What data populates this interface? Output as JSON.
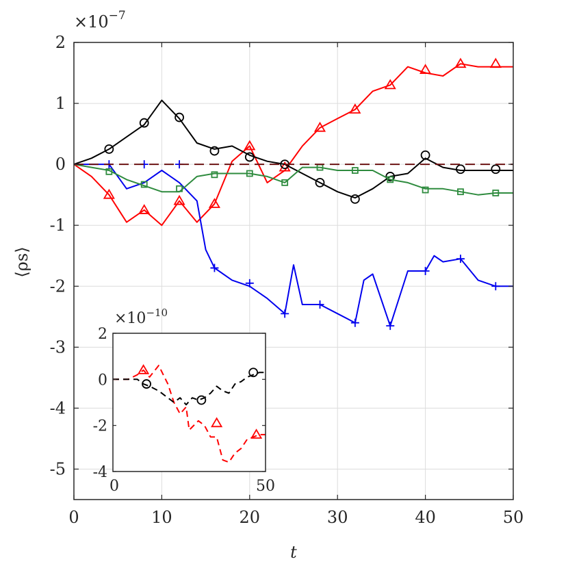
{
  "chart_data": [
    {
      "type": "line",
      "xlabel": "t",
      "ylabel": "⟨ρs⟩",
      "scale_label": "×10",
      "scale_exponent": "−7",
      "xlim": [
        0,
        50
      ],
      "ylim": [
        -5.5,
        2
      ],
      "xticks": [
        0,
        10,
        20,
        30,
        40,
        50
      ],
      "xtick_labels": [
        "0",
        "10",
        "20",
        "30",
        "40",
        "50"
      ],
      "yticks": [
        2,
        1,
        0,
        -1,
        -2,
        -3,
        -4,
        -5
      ],
      "ytick_labels": [
        "2",
        "1",
        "0",
        "-1",
        "-2",
        "-3",
        "-4",
        "-5"
      ],
      "grid": true,
      "series": [
        {
          "name": "red",
          "color": "#ff0000",
          "marker": "triangle",
          "x": [
            0,
            2,
            4,
            6,
            8,
            10,
            12,
            14,
            16,
            18,
            20,
            22,
            24,
            26,
            28,
            30,
            32,
            34,
            36,
            38,
            40,
            42,
            44,
            46,
            48,
            50
          ],
          "y": [
            0,
            -0.2,
            -0.5,
            -0.95,
            -0.75,
            -1.0,
            -0.6,
            -0.95,
            -0.65,
            0.05,
            0.3,
            -0.3,
            -0.1,
            0.3,
            0.6,
            0.75,
            0.9,
            1.2,
            1.3,
            1.6,
            1.5,
            1.45,
            1.65,
            1.6,
            1.6,
            1.6
          ],
          "marker_x": [
            4,
            8,
            12,
            16,
            20,
            24,
            28,
            32,
            36,
            40,
            44,
            48
          ],
          "marker_y": [
            -0.5,
            -0.75,
            -0.6,
            -0.65,
            0.3,
            -0.05,
            0.6,
            0.9,
            1.3,
            1.55,
            1.65,
            1.65
          ]
        },
        {
          "name": "black",
          "color": "#000000",
          "marker": "circle",
          "x": [
            0,
            2,
            4,
            6,
            8,
            10,
            12,
            14,
            16,
            18,
            20,
            22,
            24,
            26,
            28,
            30,
            32,
            34,
            36,
            38,
            40,
            42,
            44,
            46,
            48,
            50
          ],
          "y": [
            0,
            0.1,
            0.25,
            0.45,
            0.65,
            1.05,
            0.75,
            0.35,
            0.25,
            0.3,
            0.15,
            0.05,
            0.0,
            -0.15,
            -0.3,
            -0.45,
            -0.55,
            -0.4,
            -0.2,
            -0.15,
            0.1,
            -0.05,
            -0.1,
            -0.1,
            -0.1,
            -0.1
          ],
          "marker_x": [
            4,
            8,
            12,
            16,
            20,
            24,
            28,
            32,
            36,
            40,
            44,
            48
          ],
          "marker_y": [
            0.25,
            0.68,
            0.77,
            0.22,
            0.12,
            0.0,
            -0.3,
            -0.57,
            -0.2,
            0.15,
            -0.08,
            -0.08
          ]
        },
        {
          "name": "blue",
          "color": "#0000ee",
          "marker": "plus",
          "x": [
            0,
            2,
            4,
            6,
            8,
            10,
            12,
            14,
            15,
            16,
            18,
            20,
            22,
            24,
            25,
            26,
            28,
            30,
            32,
            33,
            34,
            36,
            38,
            40,
            41,
            42,
            44,
            46,
            48,
            50
          ],
          "y": [
            0,
            0,
            0,
            -0.4,
            -0.3,
            -0.1,
            -0.3,
            -0.6,
            -1.4,
            -1.7,
            -1.9,
            -2.0,
            -2.2,
            -2.45,
            -1.65,
            -2.3,
            -2.3,
            -2.45,
            -2.6,
            -1.9,
            -1.8,
            -2.65,
            -1.75,
            -1.75,
            -1.5,
            -1.6,
            -1.55,
            -1.9,
            -2.0,
            -2.0
          ],
          "marker_x": [
            4,
            8,
            12,
            16,
            20,
            24,
            28,
            32,
            36,
            40,
            44,
            48
          ],
          "marker_y": [
            0,
            0,
            0,
            -1.7,
            -1.95,
            -2.45,
            -2.3,
            -2.6,
            -2.65,
            -1.75,
            -1.55,
            -2.0
          ]
        },
        {
          "name": "green",
          "color": "#2e8b3e",
          "marker": "square",
          "x": [
            0,
            2,
            4,
            6,
            8,
            10,
            12,
            14,
            16,
            18,
            20,
            22,
            24,
            26,
            28,
            30,
            32,
            34,
            36,
            38,
            40,
            42,
            44,
            46,
            48,
            50
          ],
          "y": [
            0,
            -0.05,
            -0.1,
            -0.25,
            -0.35,
            -0.45,
            -0.45,
            -0.2,
            -0.15,
            -0.15,
            -0.15,
            -0.2,
            -0.3,
            -0.05,
            -0.05,
            -0.1,
            -0.1,
            -0.1,
            -0.25,
            -0.3,
            -0.4,
            -0.4,
            -0.45,
            -0.5,
            -0.47,
            -0.47
          ],
          "marker_x": [
            4,
            8,
            12,
            16,
            20,
            24,
            28,
            32,
            36,
            40,
            44,
            48
          ],
          "marker_y": [
            -0.12,
            -0.33,
            -0.4,
            -0.17,
            -0.15,
            -0.3,
            -0.05,
            -0.1,
            -0.25,
            -0.42,
            -0.45,
            -0.47
          ]
        },
        {
          "name": "dark-dashed",
          "color": "#6b1111",
          "marker": "none",
          "dashed": true,
          "x": [
            0,
            50
          ],
          "y": [
            0,
            0
          ],
          "marker_x": [],
          "marker_y": []
        }
      ]
    },
    {
      "type": "line",
      "inset": true,
      "scale_label": "×10",
      "scale_exponent": "−10",
      "xlim": [
        0,
        50
      ],
      "ylim": [
        -4,
        2
      ],
      "xtick_labels": [
        "0",
        "50"
      ],
      "yticks": [
        2,
        0,
        -2,
        -4
      ],
      "ytick_labels": [
        "2",
        "0",
        "-2",
        "-4"
      ],
      "series": [
        {
          "name": "inset-red",
          "color": "#ff0000",
          "marker": "triangle",
          "dashed": true,
          "x": [
            0,
            5,
            8,
            10,
            12,
            15,
            18,
            20,
            22,
            24,
            25,
            28,
            30,
            32,
            34,
            36,
            38,
            40,
            42,
            44,
            46,
            48,
            50
          ],
          "y": [
            0,
            0,
            0.2,
            0.4,
            0.1,
            0.6,
            -0.2,
            -1.0,
            -1.5,
            -1.2,
            -2.2,
            -1.8,
            -2.0,
            -2.5,
            -2.5,
            -3.5,
            -3.6,
            -3.2,
            -3.0,
            -2.6,
            -2.5,
            -2.4,
            -2.4
          ],
          "marker_x": [
            10,
            34,
            47
          ],
          "marker_y": [
            0.4,
            -1.9,
            -2.4
          ]
        },
        {
          "name": "inset-black",
          "color": "#000000",
          "marker": "circle",
          "dashed": true,
          "x": [
            0,
            5,
            8,
            10,
            12,
            15,
            17,
            20,
            22,
            24,
            26,
            28,
            30,
            32,
            34,
            36,
            38,
            40,
            42,
            44,
            46,
            48,
            50
          ],
          "y": [
            0,
            0,
            0,
            -0.2,
            -0.3,
            -0.5,
            -0.7,
            -1.0,
            -0.8,
            -1.1,
            -0.8,
            -0.9,
            -0.8,
            -0.6,
            -0.3,
            -0.5,
            -0.6,
            -0.2,
            -0.1,
            0.1,
            0.2,
            0.3,
            0.3
          ],
          "marker_x": [
            11,
            29,
            46
          ],
          "marker_y": [
            -0.2,
            -0.9,
            0.3
          ]
        }
      ]
    }
  ]
}
